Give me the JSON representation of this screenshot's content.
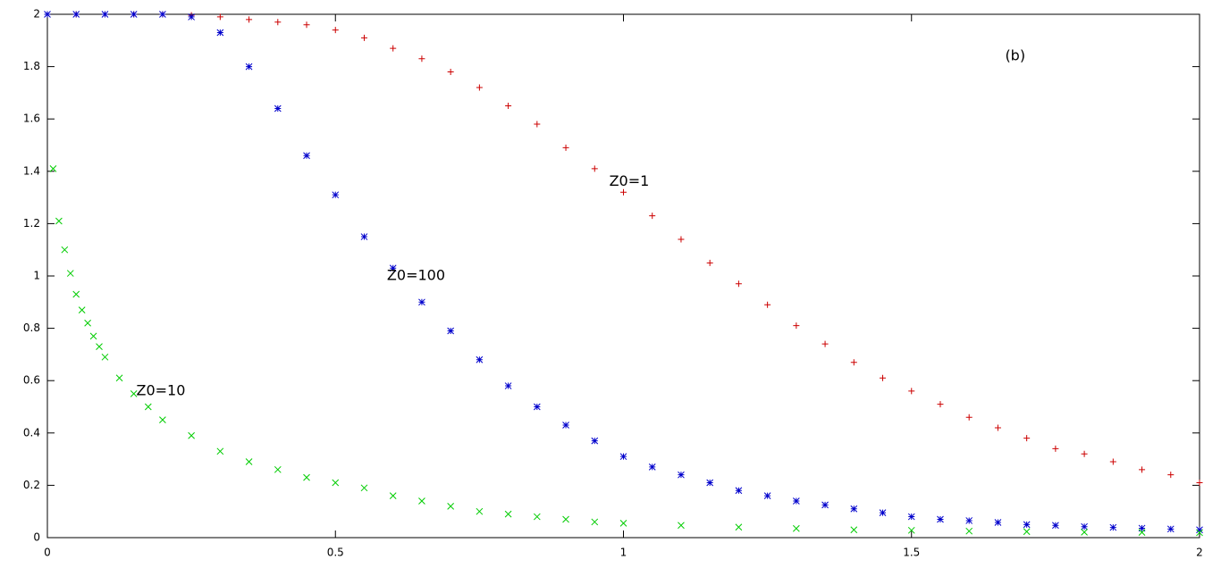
{
  "chart_data": {
    "type": "scatter",
    "xlim": [
      0,
      2
    ],
    "ylim": [
      0,
      2
    ],
    "xticks": [
      0,
      0.5,
      1,
      1.5,
      2
    ],
    "yticks": [
      0,
      0.2,
      0.4,
      0.6,
      0.8,
      1,
      1.2,
      1.4,
      1.6,
      1.8,
      2
    ],
    "grid": false,
    "series": [
      {
        "marker": "plus",
        "color": "#cc0000",
        "x": [
          0,
          0.05,
          0.1,
          0.15,
          0.2,
          0.25,
          0.3,
          0.35,
          0.4,
          0.45,
          0.5,
          0.55,
          0.6,
          0.65,
          0.7,
          0.75,
          0.8,
          0.85,
          0.9,
          0.95,
          1,
          1.05,
          1.1,
          1.15,
          1.2,
          1.25,
          1.3,
          1.35,
          1.4,
          1.45,
          1.5,
          1.55,
          1.6,
          1.65,
          1.7,
          1.75,
          1.8,
          1.85,
          1.9,
          1.95,
          2
        ],
        "values": [
          2,
          2,
          2,
          2,
          2,
          1.996,
          1.99,
          1.98,
          1.97,
          1.96,
          1.94,
          1.91,
          1.87,
          1.83,
          1.78,
          1.72,
          1.65,
          1.58,
          1.49,
          1.41,
          1.32,
          1.23,
          1.14,
          1.05,
          0.97,
          0.89,
          0.81,
          0.74,
          0.67,
          0.61,
          0.56,
          0.51,
          0.46,
          0.42,
          0.38,
          0.34,
          0.32,
          0.29,
          0.26,
          0.24,
          0.21
        ]
      },
      {
        "marker": "star",
        "color": "#0000cc",
        "x": [
          0,
          0.05,
          0.1,
          0.15,
          0.2,
          0.25,
          0.3,
          0.35,
          0.4,
          0.45,
          0.5,
          0.55,
          0.6,
          0.65,
          0.7,
          0.75,
          0.8,
          0.85,
          0.9,
          0.95,
          1,
          1.05,
          1.1,
          1.15,
          1.2,
          1.25,
          1.3,
          1.35,
          1.4,
          1.45,
          1.5,
          1.55,
          1.6,
          1.65,
          1.7,
          1.75,
          1.8,
          1.85,
          1.9,
          1.95,
          2
        ],
        "values": [
          2,
          2,
          2,
          2,
          2,
          1.99,
          1.93,
          1.8,
          1.64,
          1.46,
          1.31,
          1.15,
          1.03,
          0.9,
          0.79,
          0.68,
          0.58,
          0.5,
          0.43,
          0.37,
          0.31,
          0.27,
          0.24,
          0.21,
          0.18,
          0.16,
          0.14,
          0.125,
          0.11,
          0.095,
          0.08,
          0.07,
          0.065,
          0.058,
          0.05,
          0.047,
          0.042,
          0.039,
          0.036,
          0.033,
          0.03
        ]
      },
      {
        "marker": "cross",
        "color": "#00cc00",
        "x": [
          0.01,
          0.02,
          0.03,
          0.04,
          0.05,
          0.06,
          0.07,
          0.08,
          0.09,
          0.1,
          0.125,
          0.15,
          0.175,
          0.2,
          0.25,
          0.3,
          0.35,
          0.4,
          0.45,
          0.5,
          0.55,
          0.6,
          0.65,
          0.7,
          0.75,
          0.8,
          0.85,
          0.9,
          0.95,
          1,
          1.1,
          1.2,
          1.3,
          1.4,
          1.5,
          1.6,
          1.7,
          1.8,
          1.9,
          2
        ],
        "values": [
          1.41,
          1.21,
          1.1,
          1.01,
          0.93,
          0.87,
          0.82,
          0.77,
          0.73,
          0.69,
          0.61,
          0.55,
          0.5,
          0.45,
          0.39,
          0.33,
          0.29,
          0.26,
          0.23,
          0.21,
          0.19,
          0.16,
          0.14,
          0.12,
          0.1,
          0.09,
          0.08,
          0.07,
          0.06,
          0.055,
          0.047,
          0.04,
          0.035,
          0.03,
          0.028,
          0.025,
          0.023,
          0.021,
          0.02,
          0.019
        ]
      }
    ],
    "annotations": [
      {
        "text": "(b)",
        "x": 1.68,
        "y": 1.84
      },
      {
        "text": "Z0=1",
        "x": 1.01,
        "y": 1.36
      },
      {
        "text": "Z0=100",
        "x": 0.64,
        "y": 1.0
      },
      {
        "text": "Z0=10",
        "x": 0.197,
        "y": 0.56
      }
    ]
  }
}
